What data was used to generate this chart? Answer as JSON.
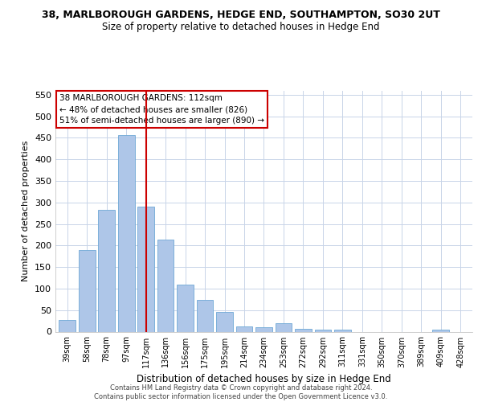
{
  "title": "38, MARLBOROUGH GARDENS, HEDGE END, SOUTHAMPTON, SO30 2UT",
  "subtitle": "Size of property relative to detached houses in Hedge End",
  "xlabel": "Distribution of detached houses by size in Hedge End",
  "ylabel": "Number of detached properties",
  "bar_labels": [
    "39sqm",
    "58sqm",
    "78sqm",
    "97sqm",
    "117sqm",
    "136sqm",
    "156sqm",
    "175sqm",
    "195sqm",
    "214sqm",
    "234sqm",
    "253sqm",
    "272sqm",
    "292sqm",
    "311sqm",
    "331sqm",
    "350sqm",
    "370sqm",
    "389sqm",
    "409sqm",
    "428sqm"
  ],
  "bar_values": [
    28,
    190,
    283,
    457,
    290,
    213,
    109,
    73,
    45,
    12,
    11,
    20,
    7,
    5,
    5,
    0,
    0,
    0,
    0,
    5,
    0
  ],
  "bar_color": "#aec6e8",
  "bar_edgecolor": "#6fa8d6",
  "vline_x": 4,
  "vline_color": "#cc0000",
  "ylim": [
    0,
    560
  ],
  "yticks": [
    0,
    50,
    100,
    150,
    200,
    250,
    300,
    350,
    400,
    450,
    500,
    550
  ],
  "annotation_text": "38 MARLBOROUGH GARDENS: 112sqm\n← 48% of detached houses are smaller (826)\n51% of semi-detached houses are larger (890) →",
  "annotation_box_color": "#ffffff",
  "annotation_box_edgecolor": "#cc0000",
  "footer_line1": "Contains HM Land Registry data © Crown copyright and database right 2024.",
  "footer_line2": "Contains public sector information licensed under the Open Government Licence v3.0.",
  "background_color": "#ffffff",
  "grid_color": "#c8d4e8"
}
